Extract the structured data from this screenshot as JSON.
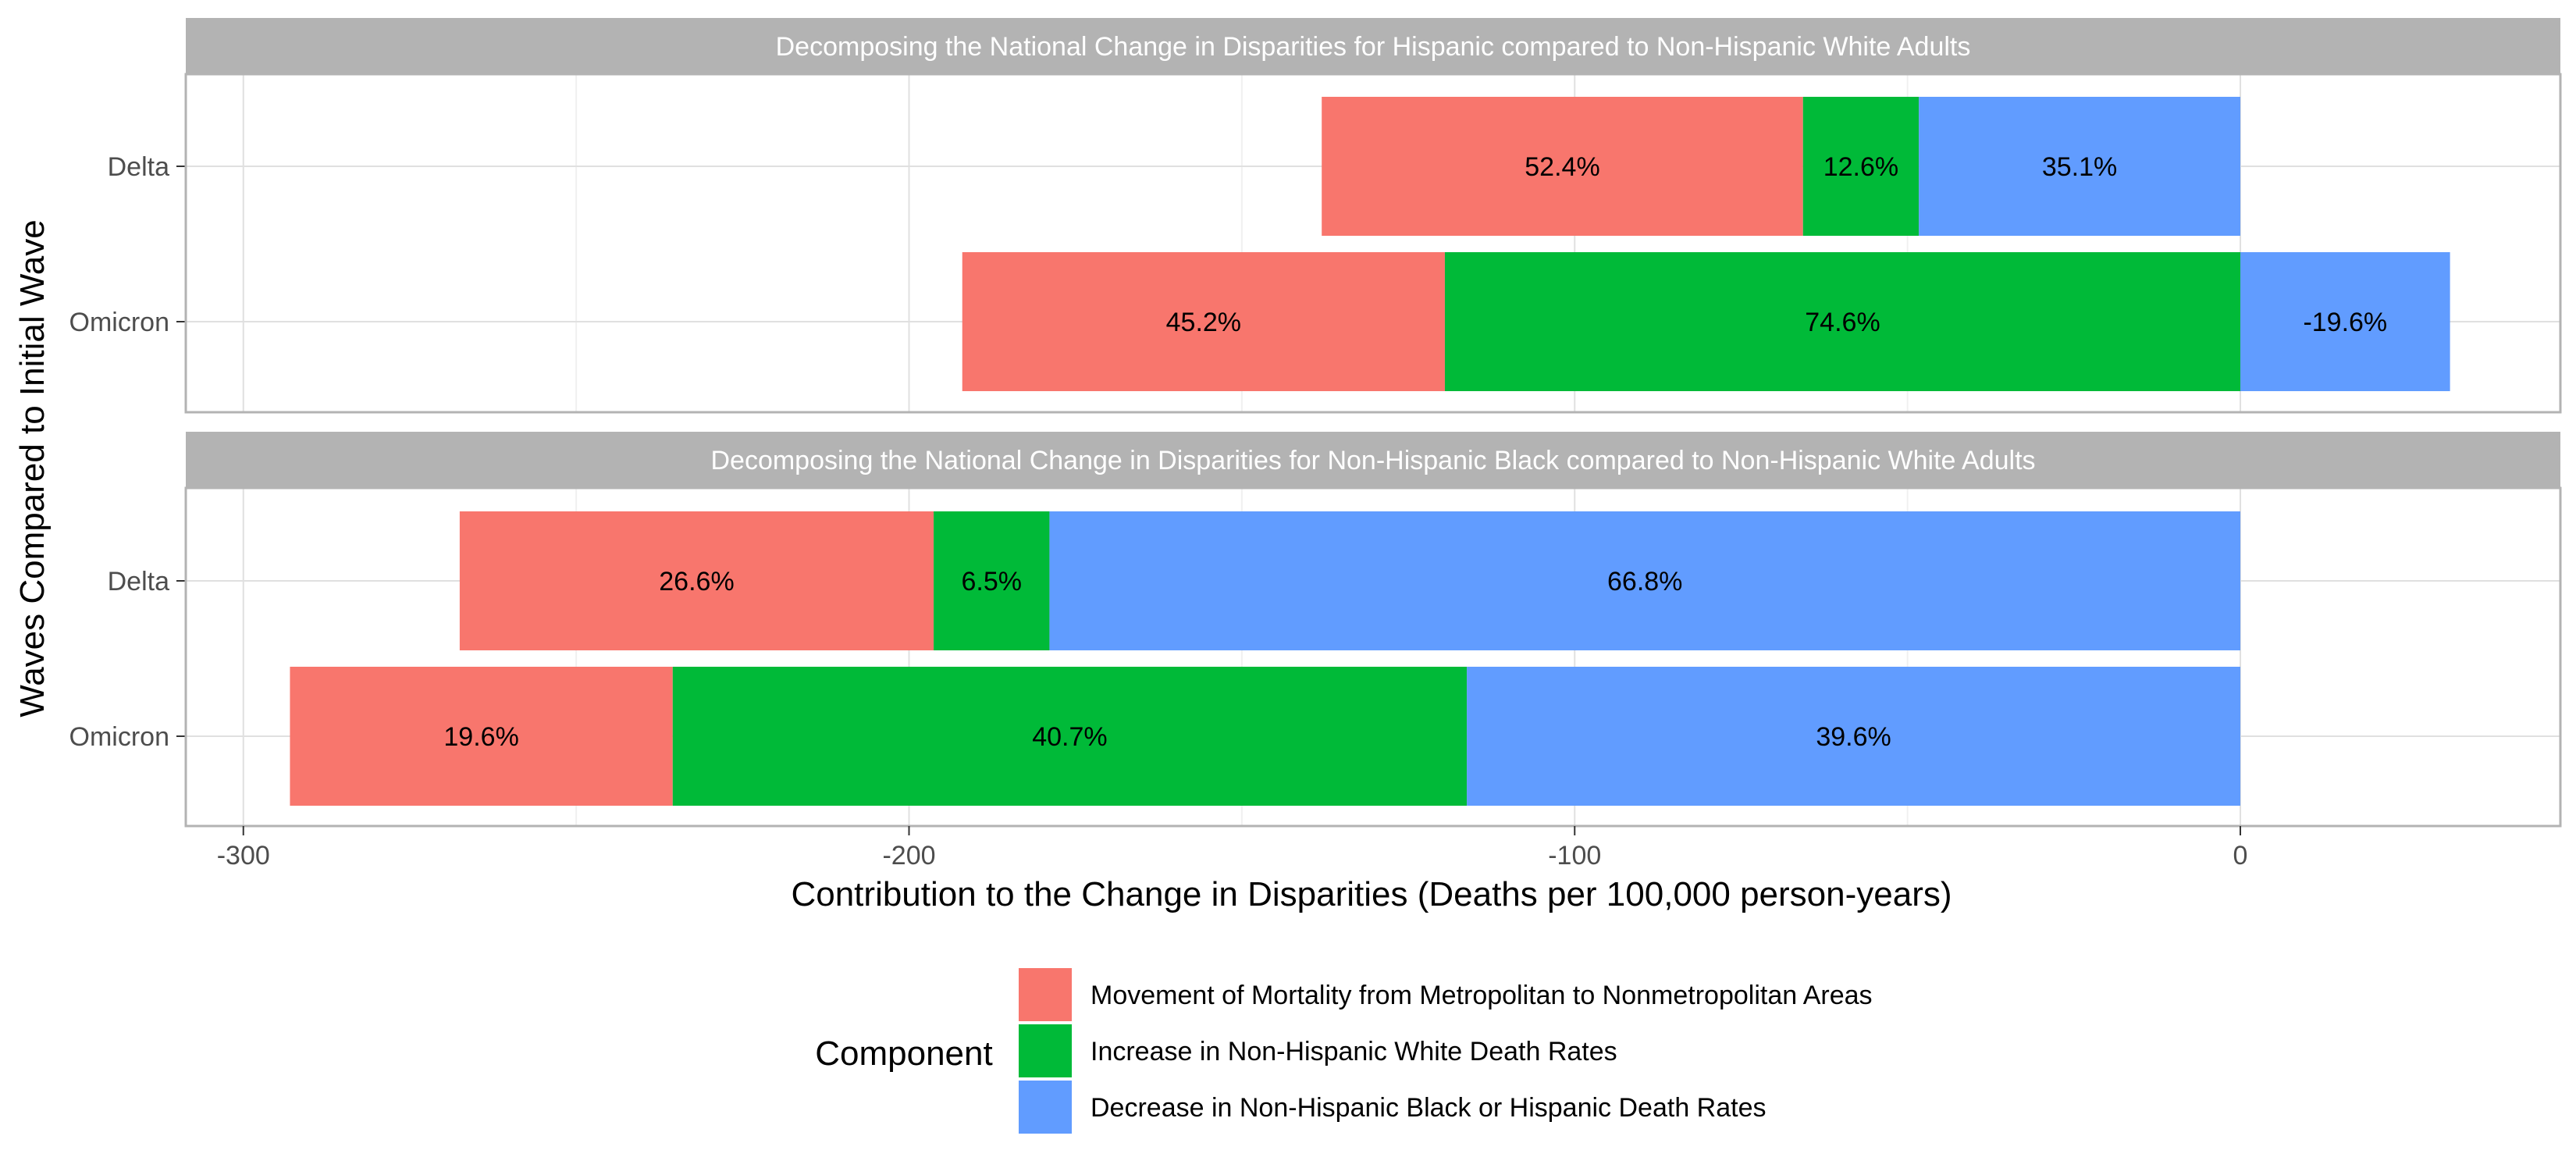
{
  "chart_data": {
    "type": "bar",
    "orientation": "horizontal",
    "stacked": true,
    "xlabel": "Contribution to the Change in Disparities (Deaths per 100,000 person-years)",
    "ylabel": "Waves Compared to Initial Wave",
    "xlim": [
      -318,
      40
    ],
    "xticks": [
      -300,
      -200,
      -100,
      0
    ],
    "xtick_labels": [
      "-300",
      "-200",
      "-100",
      "0"
    ],
    "grid": true,
    "legend": {
      "title": "Component",
      "placement": "bottom",
      "entries": [
        {
          "name": "Movement of Mortality from Metropolitan to Nonmetropolitan Areas",
          "color": "#F8766D"
        },
        {
          "name": "Increase in Non-Hispanic White Death Rates",
          "color": "#00BA38"
        },
        {
          "name": "Decrease in Non-Hispanic Black or Hispanic Death Rates",
          "color": "#619CFF"
        }
      ]
    },
    "panels": [
      {
        "title": "Decomposing the National Change in Disparities for Hispanic compared to Non-Hispanic White Adults",
        "categories": [
          "Delta",
          "Omicron"
        ],
        "bars": [
          {
            "category": "Delta",
            "segments": [
              {
                "component": 0,
                "start": -138,
                "end": -65.7,
                "label": "52.4%"
              },
              {
                "component": 1,
                "start": -65.7,
                "end": -48.3,
                "label": "12.6%"
              },
              {
                "component": 2,
                "start": -48.3,
                "end": 0,
                "label": "35.1%"
              }
            ]
          },
          {
            "category": "Omicron",
            "segments": [
              {
                "component": 0,
                "start": -192,
                "end": -119.5,
                "label": "45.2%"
              },
              {
                "component": 1,
                "start": -119.5,
                "end": 0,
                "label": "74.6%"
              },
              {
                "component": 2,
                "start": 0,
                "end": 31.5,
                "label": "-19.6%"
              }
            ]
          }
        ]
      },
      {
        "title": "Decomposing the National Change in Disparities for Non-Hispanic Black compared to Non-Hispanic White Adults",
        "categories": [
          "Delta",
          "Omicron"
        ],
        "bars": [
          {
            "category": "Delta",
            "segments": [
              {
                "component": 0,
                "start": -267.5,
                "end": -196.3,
                "label": "26.6%"
              },
              {
                "component": 1,
                "start": -196.3,
                "end": -178.9,
                "label": "6.5%"
              },
              {
                "component": 2,
                "start": -178.9,
                "end": 0,
                "label": "66.8%"
              }
            ]
          },
          {
            "category": "Omicron",
            "segments": [
              {
                "component": 0,
                "start": -293,
                "end": -235.5,
                "label": "19.6%"
              },
              {
                "component": 1,
                "start": -235.5,
                "end": -116.2,
                "label": "40.7%"
              },
              {
                "component": 2,
                "start": -116.2,
                "end": 0,
                "label": "39.6%"
              }
            ]
          }
        ]
      }
    ]
  }
}
